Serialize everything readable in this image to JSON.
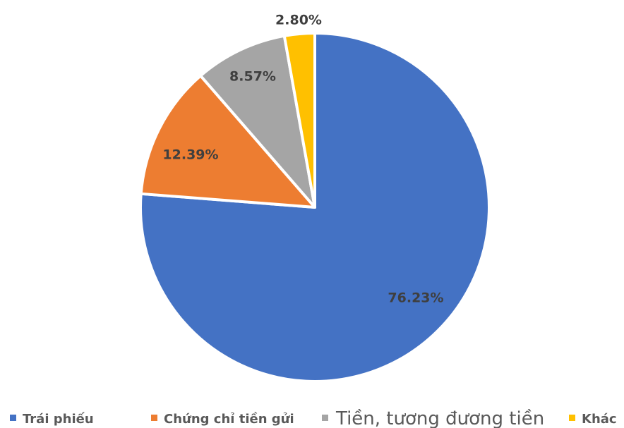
{
  "chart_data": {
    "type": "pie",
    "series": [
      {
        "name": "Trái phiếu",
        "value": 76.23,
        "label": "76.23%",
        "color": "#4472c4"
      },
      {
        "name": "Chứng chỉ tiền gửi",
        "value": 12.39,
        "label": "12.39%",
        "color": "#ed7d31"
      },
      {
        "name": "Tiền, tương đương tiền",
        "value": 8.57,
        "label": "8.57%",
        "color": "#a5a5a5"
      },
      {
        "name": "Khác",
        "value": 2.8,
        "label": "2.80%",
        "color": "#ffc000"
      }
    ],
    "start_angle": "12 o'clock",
    "direction": "clockwise",
    "legend": "bottom"
  }
}
